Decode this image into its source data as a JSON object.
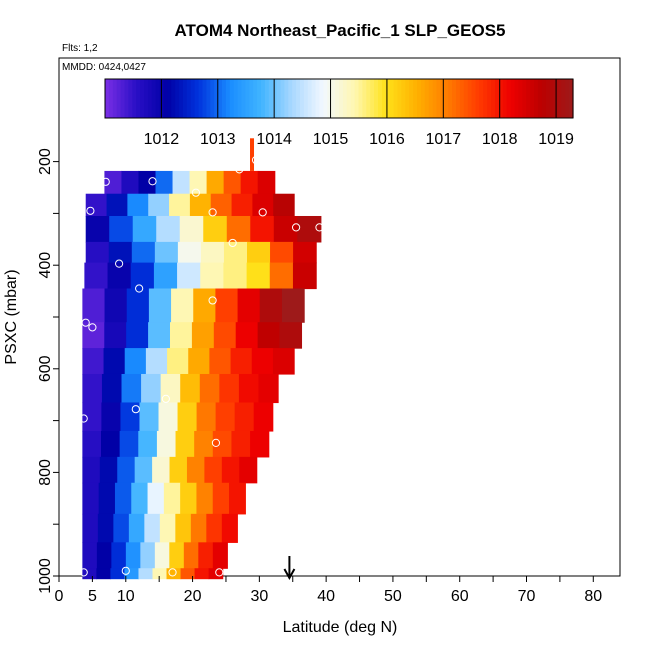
{
  "chart_data": {
    "type": "heatmap",
    "title": "ATOM4 Northeast_Pacific_1 SLP_GEOS5",
    "subtitle_flights": "Flts: 1,2",
    "subtitle_dates": "MMDD: 0424,0427",
    "xlabel": "Latitude (deg N)",
    "ylabel": "PSXC (mbar)",
    "xlim": [
      0,
      84
    ],
    "ylim": [
      1000,
      0
    ],
    "x_ticks": [
      0,
      5,
      10,
      20,
      30,
      40,
      50,
      60,
      70,
      80
    ],
    "y_ticks": [
      200,
      400,
      600,
      800,
      1000
    ],
    "colorbar": {
      "min": 1011.0,
      "max": 1019.3,
      "ticks": [
        1012,
        1013,
        1014,
        1015,
        1016,
        1017,
        1018,
        1019
      ],
      "colors": [
        "#7b2fe6",
        "#2a0fc6",
        "#0000a6",
        "#0033dd",
        "#1a8cff",
        "#40b4ff",
        "#aad8ff",
        "#f2f8ff",
        "#fff7b0",
        "#ffe21a",
        "#ffb000",
        "#ff7a00",
        "#ff3a00",
        "#ee0000",
        "#bb0000",
        "#9e1a1a"
      ]
    },
    "layers": [
      {
        "p_top": 218,
        "p_bot": 262,
        "x_start": 6.8,
        "x_end": 32.3,
        "slp": [
          1011.3,
          1011.7,
          1012.1,
          1013.0,
          1014.5,
          1015.4,
          1016.6,
          1017.4,
          1018.0,
          1018.4
        ]
      },
      {
        "p_top": 262,
        "p_bot": 305,
        "x_start": 4.0,
        "x_end": 35.2,
        "slp": [
          1011.5,
          1012.3,
          1013.2,
          1014.2,
          1015.5,
          1016.5,
          1017.3,
          1017.9,
          1018.4,
          1018.8
        ]
      },
      {
        "p_top": 305,
        "p_bot": 355,
        "x_start": 4.0,
        "x_end": 39.2,
        "slp": [
          1012.0,
          1012.8,
          1013.6,
          1014.4,
          1015.2,
          1016.2,
          1017.2,
          1018.0,
          1018.6,
          1019.0
        ]
      },
      {
        "p_top": 355,
        "p_bot": 395,
        "x_start": 4.0,
        "x_end": 38.5,
        "slp": [
          1011.6,
          1012.3,
          1013.0,
          1014.0,
          1015.0,
          1015.3,
          1015.6,
          1016.2,
          1017.5,
          1018.5
        ]
      },
      {
        "p_top": 395,
        "p_bot": 445,
        "x_start": 3.8,
        "x_end": 38.5,
        "slp": [
          1011.5,
          1012.0,
          1012.6,
          1013.5,
          1014.6,
          1015.4,
          1015.6,
          1016.0,
          1017.2,
          1018.6
        ]
      },
      {
        "p_top": 445,
        "p_bot": 510,
        "x_start": 3.5,
        "x_end": 36.7,
        "slp": [
          1011.3,
          1011.9,
          1012.6,
          1013.9,
          1015.4,
          1016.6,
          1017.6,
          1018.3,
          1019.0,
          1019.3
        ]
      },
      {
        "p_top": 510,
        "p_bot": 560,
        "x_start": 3.5,
        "x_end": 36.3,
        "slp": [
          1011.2,
          1011.8,
          1012.6,
          1013.9,
          1015.5,
          1016.7,
          1017.5,
          1018.2,
          1018.7,
          1019.0
        ]
      },
      {
        "p_top": 560,
        "p_bot": 610,
        "x_start": 3.5,
        "x_end": 35.2,
        "slp": [
          1011.4,
          1012.2,
          1013.2,
          1014.4,
          1015.6,
          1016.6,
          1017.4,
          1017.9,
          1018.2,
          1018.4
        ]
      },
      {
        "p_top": 610,
        "p_bot": 665,
        "x_start": 3.5,
        "x_end": 32.8,
        "slp": [
          1011.5,
          1012.2,
          1013.1,
          1014.2,
          1015.3,
          1016.4,
          1017.2,
          1017.7,
          1018.1,
          1018.3
        ]
      },
      {
        "p_top": 665,
        "p_bot": 720,
        "x_start": 3.5,
        "x_end": 32.0,
        "slp": [
          1011.5,
          1012.0,
          1012.7,
          1013.9,
          1015.1,
          1016.2,
          1017.1,
          1017.6,
          1017.9,
          1018.2
        ]
      },
      {
        "p_top": 720,
        "p_bot": 770,
        "x_start": 3.5,
        "x_end": 31.4,
        "slp": [
          1011.6,
          1012.1,
          1012.8,
          1013.8,
          1015.1,
          1016.2,
          1017.0,
          1017.5,
          1017.9,
          1018.2
        ]
      },
      {
        "p_top": 770,
        "p_bot": 820,
        "x_start": 3.5,
        "x_end": 29.6,
        "slp": [
          1011.7,
          1012.2,
          1012.9,
          1013.9,
          1015.2,
          1016.2,
          1017.0,
          1017.6,
          1018.0,
          1018.3
        ]
      },
      {
        "p_top": 820,
        "p_bot": 880,
        "x_start": 3.5,
        "x_end": 27.9,
        "slp": [
          1011.7,
          1012.2,
          1012.9,
          1013.8,
          1014.8,
          1015.5,
          1016.2,
          1017.0,
          1017.6,
          1018.0
        ]
      },
      {
        "p_top": 880,
        "p_bot": 935,
        "x_start": 3.5,
        "x_end": 26.7,
        "slp": [
          1011.7,
          1012.2,
          1012.8,
          1013.6,
          1014.5,
          1015.4,
          1016.3,
          1017.1,
          1017.7,
          1018.1
        ]
      },
      {
        "p_top": 935,
        "p_bot": 985,
        "x_start": 3.5,
        "x_end": 25.2,
        "slp": [
          1011.7,
          1012.1,
          1012.6,
          1013.3,
          1014.2,
          1015.1,
          1016.2,
          1017.2,
          1017.9,
          1018.3
        ]
      },
      {
        "p_top": 985,
        "p_bot": 1005,
        "x_start": 3.5,
        "x_end": 24.5,
        "slp": [
          1011.7,
          1012.1,
          1012.6,
          1013.4,
          1014.4,
          1015.4,
          1016.5,
          1017.4,
          1018.0,
          1018.3
        ]
      }
    ],
    "spike": {
      "x_start": 28.6,
      "x_end": 29.2,
      "p_top": 155,
      "p_bot": 218,
      "slp": 1017.6
    },
    "points": [
      {
        "x": 7.0,
        "p": 239
      },
      {
        "x": 14.0,
        "p": 238
      },
      {
        "x": 20.5,
        "p": 260
      },
      {
        "x": 27.0,
        "p": 215
      },
      {
        "x": 29.5,
        "p": 197
      },
      {
        "x": 4.7,
        "p": 295
      },
      {
        "x": 23.0,
        "p": 298
      },
      {
        "x": 30.5,
        "p": 298
      },
      {
        "x": 35.5,
        "p": 327
      },
      {
        "x": 39.0,
        "p": 327
      },
      {
        "x": 26.0,
        "p": 357
      },
      {
        "x": 9.0,
        "p": 397
      },
      {
        "x": 12.0,
        "p": 445
      },
      {
        "x": 23.0,
        "p": 468
      },
      {
        "x": 38.5,
        "p": 474
      },
      {
        "x": 4.0,
        "p": 511
      },
      {
        "x": 5.0,
        "p": 520
      },
      {
        "x": 16.0,
        "p": 658
      },
      {
        "x": 11.5,
        "p": 678
      },
      {
        "x": 3.7,
        "p": 696
      },
      {
        "x": 23.5,
        "p": 743
      },
      {
        "x": 3.7,
        "p": 993
      },
      {
        "x": 10.0,
        "p": 990
      },
      {
        "x": 17.0,
        "p": 993
      },
      {
        "x": 24.0,
        "p": 993
      }
    ],
    "marker_arrow": {
      "x": 34.5
    }
  }
}
